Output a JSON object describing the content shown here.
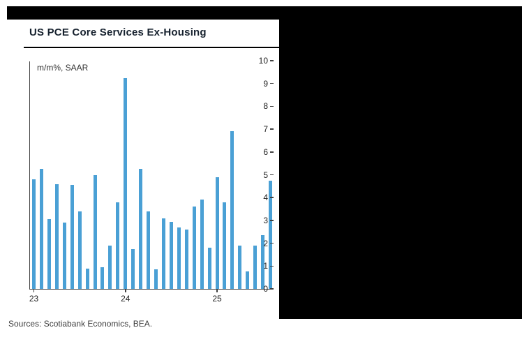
{
  "masks": {
    "top_color": "#000000",
    "right_color": "#000000"
  },
  "chart_data": {
    "type": "bar",
    "title": "US PCE Core Services Ex-Housing",
    "subtitle": "m/m%, SAAR",
    "xlabel": "",
    "ylabel": "",
    "ylim": [
      0,
      10
    ],
    "y_ticks": [
      0,
      1,
      2,
      3,
      4,
      5,
      6,
      7,
      8,
      9,
      10
    ],
    "x_ticks": [
      {
        "label": "23",
        "index": 0
      },
      {
        "label": "24",
        "index": 12
      },
      {
        "label": "25",
        "index": 24
      }
    ],
    "categories": [
      "Jan-23",
      "Feb-23",
      "Mar-23",
      "Apr-23",
      "May-23",
      "Jun-23",
      "Jul-23",
      "Aug-23",
      "Sep-23",
      "Oct-23",
      "Nov-23",
      "Dec-23",
      "Jan-24",
      "Feb-24",
      "Mar-24",
      "Apr-24",
      "May-24",
      "Jun-24",
      "Jul-24",
      "Aug-24",
      "Sep-24",
      "Oct-24",
      "Nov-24",
      "Dec-24",
      "Jan-25",
      "Feb-25",
      "Mar-25",
      "Apr-25",
      "May-25",
      "Jun-25",
      "Jul-25",
      "Aug-25"
    ],
    "values": [
      4.8,
      5.25,
      3.05,
      4.6,
      2.9,
      4.55,
      3.4,
      0.9,
      5.0,
      0.95,
      1.9,
      3.8,
      9.25,
      1.75,
      5.25,
      3.4,
      0.85,
      3.1,
      2.95,
      2.7,
      2.6,
      3.6,
      3.9,
      1.8,
      4.9,
      3.8,
      6.9,
      1.9,
      0.75,
      1.9,
      2.35,
      4.75
    ],
    "bar_color": "#4aa0d5",
    "grid": false,
    "legend": false
  },
  "footer": {
    "sources": "Sources: Scotiabank Economics, BEA."
  }
}
